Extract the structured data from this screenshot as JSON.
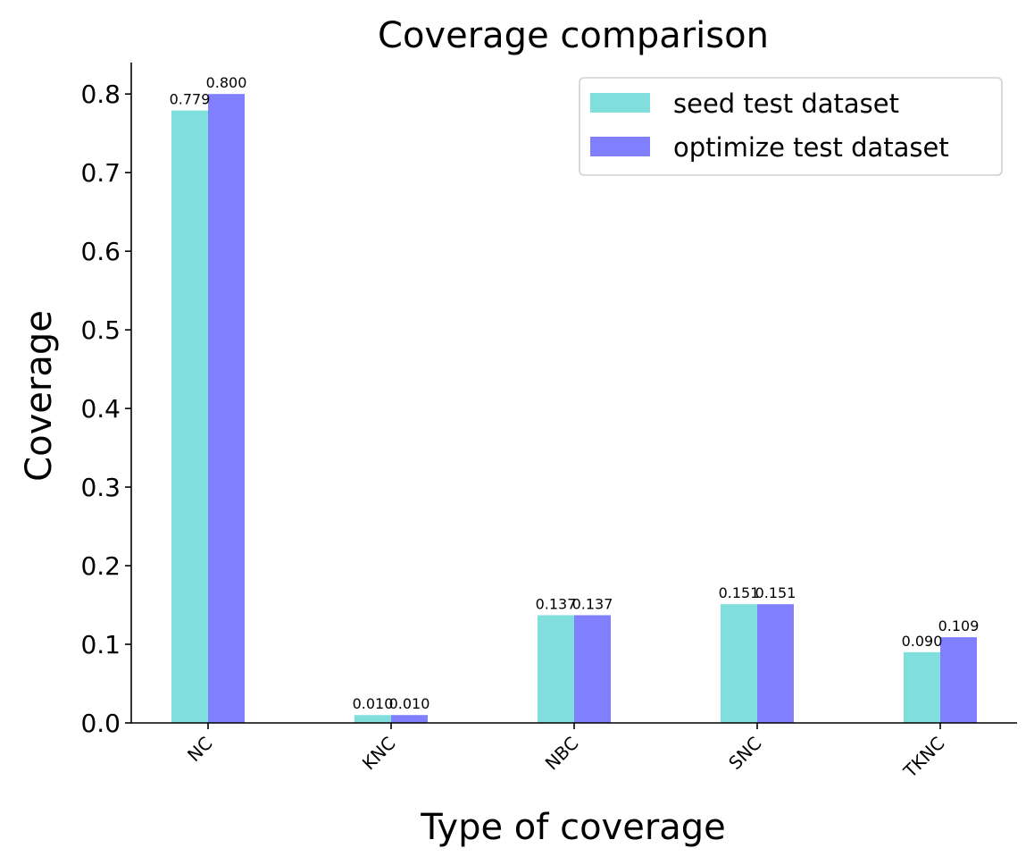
{
  "chart_data": {
    "type": "bar",
    "title": "Coverage comparison",
    "xlabel": "Type of coverage",
    "ylabel": "Coverage",
    "categories": [
      "NC",
      "KNC",
      "NBC",
      "SNC",
      "TKNC"
    ],
    "series": [
      {
        "name": "seed test dataset",
        "color": "#80dfdd",
        "values": [
          0.779,
          0.01,
          0.137,
          0.151,
          0.09
        ],
        "labels": [
          "0.779",
          "0.010",
          "0.137",
          "0.151",
          "0.090"
        ]
      },
      {
        "name": "optimize test dataset",
        "color": "#8080ff",
        "values": [
          0.8,
          0.01,
          0.137,
          0.151,
          0.109
        ],
        "labels": [
          "0.800",
          "0.010",
          "0.137",
          "0.151",
          "0.109"
        ]
      }
    ],
    "ylim": [
      0,
      0.84
    ],
    "yticks": [
      0.0,
      0.1,
      0.2,
      0.3,
      0.4,
      0.5,
      0.6,
      0.7,
      0.8
    ],
    "ytick_labels": [
      "0.0",
      "0.1",
      "0.2",
      "0.3",
      "0.4",
      "0.5",
      "0.6",
      "0.7",
      "0.8"
    ],
    "grid": false,
    "legend_position": "top-right",
    "xtick_rotation": "45"
  }
}
